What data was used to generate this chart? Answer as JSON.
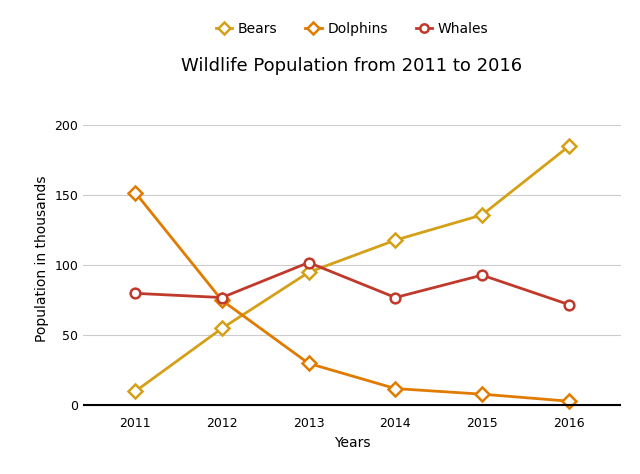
{
  "title": "Wildlife Population from 2011 to 2016",
  "xlabel": "Years",
  "ylabel": "Population in thousands",
  "years": [
    2011,
    2012,
    2013,
    2014,
    2015,
    2016
  ],
  "bears": [
    10,
    55,
    95,
    118,
    136,
    185
  ],
  "dolphins": [
    152,
    75,
    30,
    12,
    8,
    3
  ],
  "whales": [
    80,
    77,
    102,
    77,
    93,
    72
  ],
  "bears_color": "#D4A017",
  "dolphins_color": "#E07B00",
  "whales_color": "#C0392B",
  "ylim": [
    -5,
    215
  ],
  "yticks": [
    0,
    50,
    100,
    150,
    200
  ],
  "background_color": "#FFFFFF",
  "grid_color": "#CCCCCC",
  "title_fontsize": 13,
  "label_fontsize": 10,
  "legend_fontsize": 10,
  "marker": "o",
  "marker_size": 7,
  "linewidth": 2.0
}
